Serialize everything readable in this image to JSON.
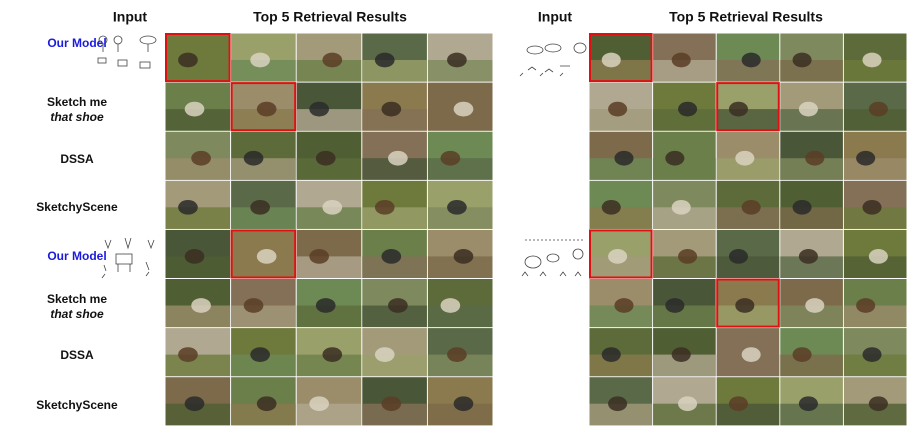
{
  "panels": [
    {
      "input_header": "Input",
      "results_header": "Top 5 Retrieval Results"
    },
    {
      "input_header": "Input",
      "results_header": "Top 5 Retrieval Results"
    }
  ],
  "row_labels": [
    {
      "text": "Our Model"
    },
    {
      "line1": "Sketch me",
      "line2": "that shoe"
    },
    {
      "text": "DSSA"
    },
    {
      "text": "SketchyScene"
    },
    {
      "text": "Our Model"
    },
    {
      "line1": "Sketch me",
      "line2": "that shoe"
    },
    {
      "text": "DSSA"
    },
    {
      "text": "SketchyScene"
    }
  ]
}
